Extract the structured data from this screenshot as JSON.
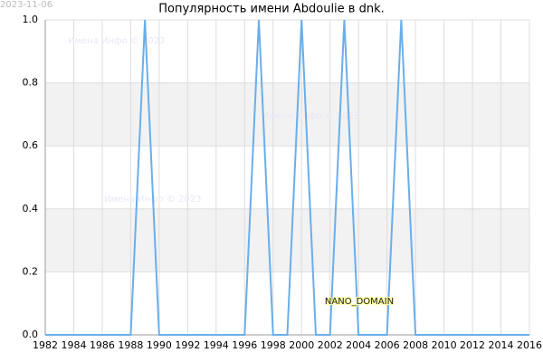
{
  "date_stamp": "2023-11-06",
  "watermarks": [
    "Имена Инфо © 2023",
    "Имена Инфо © 2023",
    "Имена Инфо © 2023"
  ],
  "domain_label": "NANO_DOMAIN",
  "chart_data": {
    "type": "line",
    "title": "Популярность имени Abdoulie в dnk.",
    "x": [
      1982,
      1983,
      1984,
      1985,
      1986,
      1987,
      1988,
      1989,
      1990,
      1991,
      1992,
      1993,
      1994,
      1995,
      1996,
      1997,
      1998,
      1999,
      2000,
      2001,
      2002,
      2003,
      2004,
      2005,
      2006,
      2007,
      2008,
      2009,
      2010,
      2011,
      2012,
      2013,
      2014,
      2015,
      2016
    ],
    "series": [
      {
        "color": "#6aaeea",
        "values": [
          0,
          0,
          0,
          0,
          0,
          0,
          0,
          1,
          0,
          0,
          0,
          0,
          0,
          0,
          0,
          1,
          0,
          0,
          1,
          0,
          0,
          1,
          0,
          0,
          0,
          1,
          0,
          0,
          0,
          0,
          0,
          0,
          0,
          0,
          0
        ]
      }
    ],
    "xlim": [
      1982,
      2016
    ],
    "xticks": [
      1982,
      1984,
      1986,
      1988,
      1990,
      1992,
      1994,
      1996,
      1998,
      2000,
      2002,
      2004,
      2006,
      2008,
      2010,
      2012,
      2014,
      2016
    ],
    "ylim": [
      0,
      1
    ],
    "yticks": [
      {
        "value": 0,
        "label": "0.0"
      },
      0.2,
      0.4,
      0.6,
      0.8,
      {
        "value": 1,
        "label": "1.0"
      }
    ],
    "grid": true,
    "bands": true
  }
}
